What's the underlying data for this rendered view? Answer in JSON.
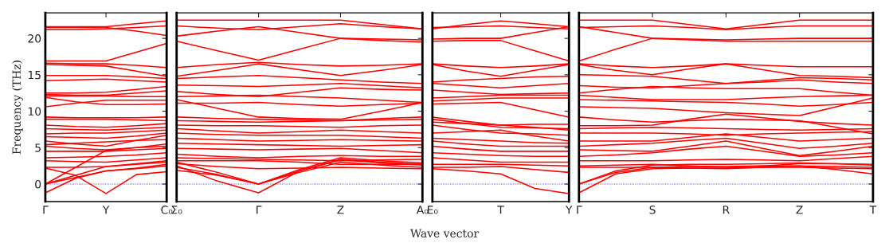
{
  "chart_data": [
    {
      "type": "line",
      "ylabel": "Frequency (THz)",
      "color": "#ff0000",
      "line_style": "solid",
      "marker": "none",
      "ylim": [
        -2.4,
        23.5
      ],
      "yticks": [
        0,
        5,
        10,
        15,
        20
      ],
      "categories": [
        "Γ",
        null,
        "Y",
        null,
        "C₀"
      ],
      "ref_lines": [
        {
          "axis": "y",
          "value": 0,
          "color": "#0000ff",
          "line_style": "dotted"
        }
      ],
      "series": [
        {
          "values": [
            21.6,
            21.6,
            21.6,
            22.0,
            22.4
          ]
        },
        {
          "values": [
            21.2,
            21.2,
            21.3,
            21.5,
            21.7
          ]
        },
        {
          "values": [
            21.5,
            21.5,
            21.5,
            21.0,
            20.4
          ]
        },
        {
          "values": [
            16.9,
            16.9,
            16.9,
            18.1,
            19.3
          ]
        },
        {
          "values": [
            16.6,
            16.5,
            16.5,
            16.3,
            16.0
          ]
        },
        {
          "values": [
            16.4,
            16.3,
            16.2,
            15.5,
            14.8
          ]
        },
        {
          "values": [
            14.9,
            14.9,
            14.9,
            14.7,
            14.5
          ]
        },
        {
          "values": [
            14.2,
            14.3,
            14.4,
            14.2,
            14.0
          ]
        },
        {
          "values": [
            12.5,
            12.5,
            12.6,
            13.0,
            13.4
          ]
        },
        {
          "values": [
            12.3,
            12.2,
            12.2,
            12.5,
            12.8
          ]
        },
        {
          "values": [
            12.1,
            12.1,
            12.1,
            12.0,
            12.0
          ]
        },
        {
          "values": [
            11.9,
            11.3,
            10.9,
            10.9,
            11.0
          ]
        },
        {
          "values": [
            10.6,
            11.1,
            11.5,
            11.5,
            11.5
          ]
        },
        {
          "values": [
            9.2,
            9.1,
            9.1,
            9.1,
            9.2
          ]
        },
        {
          "values": [
            8.9,
            8.9,
            8.9,
            8.8,
            8.7
          ]
        },
        {
          "values": [
            8.1,
            7.9,
            7.8,
            8.0,
            8.3
          ]
        },
        {
          "values": [
            7.6,
            7.5,
            7.4,
            7.6,
            7.8
          ]
        },
        {
          "values": [
            6.9,
            7.0,
            7.0,
            7.2,
            7.4
          ]
        },
        {
          "values": [
            6.5,
            6.4,
            6.3,
            6.6,
            7.0
          ]
        },
        {
          "values": [
            5.9,
            5.5,
            5.2,
            6.0,
            6.7
          ]
        },
        {
          "values": [
            5.4,
            5.6,
            5.8,
            6.0,
            6.1
          ]
        },
        {
          "values": [
            5.2,
            4.9,
            4.7,
            5.0,
            5.2
          ]
        },
        {
          "values": [
            4.5,
            4.5,
            4.5,
            4.7,
            4.9
          ]
        },
        {
          "values": [
            3.6,
            3.7,
            3.8,
            4.0,
            4.3
          ]
        },
        {
          "values": [
            3.2,
            3.1,
            3.0,
            3.3,
            3.6
          ]
        },
        {
          "values": [
            2.3,
            2.3,
            2.4,
            2.8,
            3.2
          ]
        },
        {
          "values": [
            0,
            2.3,
            4.6,
            5.0,
            5.5
          ]
        },
        {
          "values": [
            0,
            1.2,
            2.4,
            2.7,
            3.0
          ]
        },
        {
          "values": [
            0,
            0.9,
            1.8,
            2.1,
            2.5
          ]
        },
        {
          "values": [
            2.2,
            1.2,
            -1.3,
            1.3,
            1.7
          ]
        },
        {
          "values": [
            -1.2,
            0.8,
            1.8,
            2.2,
            2.7
          ]
        }
      ]
    },
    {
      "type": "line",
      "color": "#ff0000",
      "line_style": "solid",
      "marker": "none",
      "tick_labels": "x",
      "ylim": [
        -2.4,
        23.5
      ],
      "yticks": [
        0,
        5,
        10,
        15,
        20
      ],
      "categories": [
        "Σ₀",
        null,
        "Γ",
        null,
        "Z",
        null,
        "A₀"
      ],
      "ref_lines": [
        {
          "axis": "y",
          "value": 0,
          "color": "#0000ff",
          "line_style": "dotted"
        }
      ],
      "series": [
        {
          "values": [
            22.5,
            22.5,
            22.5,
            22.5,
            22.5,
            21.9,
            21.3
          ]
        },
        {
          "values": [
            21.7,
            21.4,
            21.2,
            21.6,
            22.0,
            21.6,
            21.3
          ]
        },
        {
          "values": [
            20.3,
            21.0,
            21.6,
            20.8,
            20.0,
            19.9,
            19.8
          ]
        },
        {
          "values": [
            19.6,
            18.3,
            17.0,
            18.5,
            20.0,
            19.7,
            19.5
          ]
        },
        {
          "values": [
            16.0,
            16.4,
            16.7,
            16.4,
            16.2,
            16.3,
            16.5
          ]
        },
        {
          "values": [
            14.8,
            15.6,
            16.5,
            15.7,
            14.9,
            15.6,
            16.4
          ]
        },
        {
          "values": [
            14.5,
            14.7,
            14.9,
            14.6,
            14.3,
            14.0,
            13.8
          ]
        },
        {
          "values": [
            13.6,
            13.5,
            13.4,
            13.6,
            13.8,
            13.5,
            13.2
          ]
        },
        {
          "values": [
            12.7,
            12.3,
            12.0,
            12.6,
            13.2,
            13.0,
            12.9
          ]
        },
        {
          "values": [
            12.0,
            12.1,
            12.2,
            12.0,
            11.8,
            11.5,
            11.2
          ]
        },
        {
          "values": [
            11.1,
            11.1,
            11.2,
            10.9,
            10.7,
            10.9,
            11.1
          ]
        },
        {
          "values": [
            11.6,
            10.4,
            9.2,
            9.0,
            8.9,
            10.0,
            11.2
          ]
        },
        {
          "values": [
            9.2,
            9.0,
            8.9,
            8.8,
            8.7,
            9.0,
            9.2
          ]
        },
        {
          "values": [
            8.7,
            8.6,
            8.5,
            8.6,
            8.7,
            8.8,
            8.9
          ]
        },
        {
          "values": [
            8.1,
            8.0,
            8.0,
            7.9,
            7.8,
            8.0,
            8.1
          ]
        },
        {
          "values": [
            7.6,
            7.3,
            7.0,
            7.2,
            7.4,
            7.2,
            7.0
          ]
        },
        {
          "values": [
            7.0,
            6.8,
            6.7,
            6.7,
            6.7,
            6.5,
            6.3
          ]
        },
        {
          "values": [
            6.3,
            6.1,
            5.9,
            6.0,
            6.1,
            6.0,
            5.9
          ]
        },
        {
          "values": [
            5.6,
            5.5,
            5.4,
            5.3,
            5.2,
            5.3,
            5.4
          ]
        },
        {
          "values": [
            4.9,
            4.8,
            4.7,
            4.8,
            4.9,
            4.6,
            4.3
          ]
        },
        {
          "values": [
            4.1,
            3.8,
            3.6,
            3.8,
            3.9,
            3.8,
            3.8
          ]
        },
        {
          "values": [
            3.6,
            3.5,
            3.4,
            3.3,
            3.2,
            3.3,
            3.4
          ]
        },
        {
          "values": [
            3.2,
            3.2,
            3.2,
            3.0,
            2.7,
            2.7,
            2.7
          ]
        },
        {
          "values": [
            2.8,
            2.4,
            2.1,
            2.2,
            2.3,
            2.2,
            2.1
          ]
        },
        {
          "values": [
            1.9,
            1.2,
            0,
            1.6,
            3.0,
            2.6,
            2.3
          ]
        },
        {
          "values": [
            2.3,
            1.3,
            0,
            1.8,
            3.3,
            2.9,
            2.6
          ]
        },
        {
          "values": [
            3.0,
            1.6,
            0,
            2.0,
            3.6,
            3.2,
            2.9
          ]
        },
        {
          "values": [
            2.5,
            0.4,
            -1.2,
            1.8,
            3.4,
            3.0,
            2.7
          ]
        }
      ]
    },
    {
      "type": "line",
      "color": "#ff0000",
      "line_style": "solid",
      "marker": "none",
      "tick_labels": "x",
      "ylim": [
        -2.4,
        23.5
      ],
      "yticks": [
        0,
        5,
        10,
        15,
        20
      ],
      "xlabel": "Wave vector",
      "categories": [
        "E₀",
        null,
        "T",
        null,
        "Y"
      ],
      "ref_lines": [
        {
          "axis": "y",
          "value": 0,
          "color": "#0000ff",
          "line_style": "dotted"
        }
      ],
      "series": [
        {
          "values": [
            21.3,
            21.9,
            22.4,
            22.0,
            21.6
          ]
        },
        {
          "values": [
            21.5,
            21.6,
            21.7,
            21.5,
            21.3
          ]
        },
        {
          "values": [
            19.9,
            20.0,
            20.0,
            20.8,
            21.6
          ]
        },
        {
          "values": [
            19.6,
            19.7,
            19.7,
            18.3,
            16.9
          ]
        },
        {
          "values": [
            16.5,
            16.2,
            16.0,
            16.2,
            16.5
          ]
        },
        {
          "values": [
            16.4,
            15.5,
            14.8,
            15.6,
            16.4
          ]
        },
        {
          "values": [
            14.0,
            14.3,
            14.5,
            14.7,
            14.8
          ]
        },
        {
          "values": [
            13.8,
            13.5,
            13.2,
            13.5,
            13.8
          ]
        },
        {
          "values": [
            12.9,
            12.6,
            12.3,
            12.4,
            12.5
          ]
        },
        {
          "values": [
            11.8,
            12.0,
            12.2,
            12.2,
            12.2
          ]
        },
        {
          "values": [
            11.4,
            11.6,
            11.8,
            11.8,
            11.8
          ]
        },
        {
          "values": [
            11.0,
            11.1,
            11.2,
            10.2,
            9.2
          ]
        },
        {
          "values": [
            9.2,
            8.6,
            8.1,
            8.2,
            8.2
          ]
        },
        {
          "values": [
            8.9,
            8.3,
            7.8,
            7.7,
            7.6
          ]
        },
        {
          "values": [
            8.5,
            8.3,
            8.1,
            7.8,
            7.4
          ]
        },
        {
          "values": [
            8.1,
            7.5,
            7.0,
            6.9,
            6.7
          ]
        },
        {
          "values": [
            7.0,
            7.2,
            7.4,
            6.6,
            5.9
          ]
        },
        {
          "values": [
            6.3,
            6.1,
            5.9,
            5.7,
            5.6
          ]
        },
        {
          "values": [
            5.9,
            5.5,
            5.2,
            5.2,
            5.2
          ]
        },
        {
          "values": [
            5.2,
            4.8,
            4.5,
            4.5,
            4.5
          ]
        },
        {
          "values": [
            4.3,
            4.1,
            3.9,
            3.8,
            3.8
          ]
        },
        {
          "values": [
            3.6,
            3.3,
            3.0,
            3.0,
            3.0
          ]
        },
        {
          "values": [
            2.7,
            2.7,
            2.7,
            2.6,
            2.5
          ]
        },
        {
          "values": [
            2.3,
            2.3,
            2.4,
            2.0,
            1.6
          ]
        },
        {
          "values": [
            2.1,
            1.8,
            1.4,
            -0.6,
            -1.3
          ]
        }
      ]
    },
    {
      "type": "line",
      "color": "#ff0000",
      "line_style": "solid",
      "marker": "none",
      "tick_labels": "x",
      "ylim": [
        -2.4,
        23.5
      ],
      "yticks": [
        0,
        5,
        10,
        15,
        20
      ],
      "categories": [
        "Γ",
        null,
        "S",
        null,
        "R",
        null,
        "Z",
        null,
        "T"
      ],
      "ref_lines": [
        {
          "axis": "y",
          "value": 0,
          "color": "#0000ff",
          "line_style": "dotted"
        }
      ],
      "series": [
        {
          "values": [
            22.5,
            22.5,
            22.5,
            21.9,
            21.3,
            21.9,
            22.5,
            22.5,
            22.5
          ]
        },
        {
          "values": [
            21.5,
            21.6,
            21.7,
            21.5,
            21.2,
            21.5,
            21.7,
            21.7,
            21.7
          ]
        },
        {
          "values": [
            21.6,
            20.8,
            20.0,
            19.9,
            19.8,
            19.9,
            20.0,
            20.0,
            20.0
          ]
        },
        {
          "values": [
            16.9,
            18.5,
            20.0,
            19.8,
            19.6,
            19.6,
            19.6,
            19.6,
            19.6
          ]
        },
        {
          "values": [
            16.5,
            16.2,
            16.0,
            16.2,
            16.5,
            16.3,
            16.1,
            16.1,
            16.1
          ]
        },
        {
          "values": [
            15.0,
            14.9,
            14.8,
            14.3,
            13.8,
            14.2,
            14.6,
            14.5,
            14.3
          ]
        },
        {
          "values": [
            16.4,
            15.6,
            15.0,
            15.8,
            16.5,
            15.7,
            14.9,
            14.8,
            14.6
          ]
        },
        {
          "values": [
            13.5,
            13.3,
            13.2,
            13.5,
            13.8,
            14.0,
            14.3,
            14.0,
            13.8
          ]
        },
        {
          "values": [
            12.5,
            13.0,
            13.4,
            13.2,
            13.1,
            13.1,
            13.1,
            12.6,
            12.2
          ]
        },
        {
          "values": [
            12.2,
            11.9,
            11.6,
            11.6,
            11.6,
            11.8,
            12.0,
            12.1,
            12.2
          ]
        },
        {
          "values": [
            11.6,
            11.5,
            11.4,
            11.3,
            11.2,
            11.0,
            10.7,
            10.9,
            11.2
          ]
        },
        {
          "values": [
            10.6,
            10.5,
            10.4,
            10.1,
            9.8,
            9.6,
            9.4,
            10.6,
            11.8
          ]
        },
        {
          "values": [
            9.2,
            8.8,
            8.5,
            8.7,
            8.9,
            8.8,
            8.7,
            7.8,
            6.9
          ]
        },
        {
          "values": [
            8.0,
            8.0,
            8.1,
            8.9,
            9.6,
            9.1,
            8.6,
            8.3,
            8.1
          ]
        },
        {
          "values": [
            7.6,
            7.7,
            7.8,
            7.7,
            7.6,
            7.5,
            7.4,
            7.5,
            7.6
          ]
        },
        {
          "values": [
            7.0,
            7.0,
            7.0,
            6.9,
            6.7,
            6.9,
            7.0,
            7.1,
            7.2
          ]
        },
        {
          "values": [
            5.9,
            5.9,
            5.9,
            6.4,
            6.9,
            6.4,
            5.9,
            6.1,
            6.3
          ]
        },
        {
          "values": [
            5.2,
            5.4,
            5.6,
            6.0,
            6.3,
            5.6,
            4.9,
            5.2,
            5.6
          ]
        },
        {
          "values": [
            4.7,
            4.6,
            4.5,
            5.2,
            5.9,
            4.9,
            3.9,
            4.5,
            5.2
          ]
        },
        {
          "values": [
            3.8,
            4.0,
            4.3,
            4.8,
            5.2,
            4.5,
            3.8,
            4.0,
            4.3
          ]
        },
        {
          "values": [
            3.2,
            3.2,
            3.2,
            3.3,
            3.4,
            3.3,
            3.2,
            3.5,
            3.8
          ]
        },
        {
          "values": [
            2.5,
            2.6,
            2.7,
            2.5,
            2.3,
            2.5,
            2.8,
            2.8,
            2.7
          ]
        },
        {
          "values": [
            2.3,
            2.3,
            2.3,
            2.2,
            2.1,
            2.3,
            2.5,
            2.0,
            1.4
          ]
        },
        {
          "values": [
            0,
            1.6,
            2.3,
            2.4,
            2.4,
            2.5,
            2.5,
            2.4,
            2.3
          ]
        },
        {
          "values": [
            0,
            1.8,
            2.6,
            2.7,
            2.7,
            2.8,
            2.9,
            2.8,
            2.6
          ]
        },
        {
          "values": [
            -1.2,
            1.4,
            2.1,
            2.2,
            2.2,
            2.3,
            2.3,
            2.2,
            2.1
          ]
        }
      ]
    }
  ]
}
